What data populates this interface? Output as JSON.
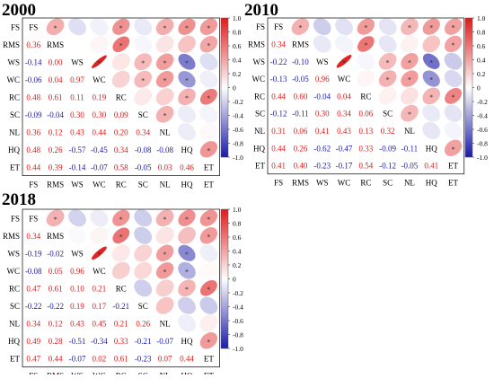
{
  "chart_data": {
    "type": "heatmap",
    "variables": [
      "FS",
      "RMS",
      "WS",
      "WC",
      "RC",
      "SC",
      "NL",
      "HQ",
      "ET"
    ],
    "colorbar": {
      "ticks": [
        "1.0",
        "0.8",
        "0.6",
        "0.4",
        "0.2",
        "0",
        "-0.2",
        "-0.4",
        "-0.6",
        "-0.8",
        "-1.0"
      ],
      "range": [
        -1,
        1
      ],
      "colors": {
        "negative": "#1a1aa8",
        "zero": "#ffffff",
        "positive": "#e01a1a"
      }
    },
    "significance_marker": "*",
    "upper_triangle": "ellipse",
    "lower_triangle": "number",
    "panels": [
      {
        "title": "2000",
        "lower": [
          [
            "0.36"
          ],
          [
            "-0.14",
            "0.00"
          ],
          [
            "-0.06",
            "0.04",
            "0.97"
          ],
          [
            "0.48",
            "0.61",
            "0.11",
            "0.19"
          ],
          [
            "-0.09",
            "-0.04",
            "0.30",
            "0.30",
            "0.09"
          ],
          [
            "0.36",
            "0.12",
            "0.43",
            "0.44",
            "0.20",
            "0.34"
          ],
          [
            "0.48",
            "0.26",
            "-0.57",
            "-0.45",
            "0.34",
            "-0.08",
            "-0.08"
          ],
          [
            "0.44",
            "0.39",
            "-0.14",
            "-0.07",
            "0.58",
            "-0.05",
            "0.03",
            "0.46"
          ]
        ]
      },
      {
        "title": "2010",
        "lower": [
          [
            "0.34"
          ],
          [
            "-0.22",
            "-0.10"
          ],
          [
            "-0.13",
            "-0.05",
            "0.96"
          ],
          [
            "0.44",
            "0.60",
            "-0.04",
            "0.04"
          ],
          [
            "-0.12",
            "-0.11",
            "0.30",
            "0.34",
            "0.06"
          ],
          [
            "0.31",
            "0.06",
            "0.41",
            "0.43",
            "0.13",
            "0.32"
          ],
          [
            "0.44",
            "0.26",
            "-0.62",
            "-0.47",
            "0.33",
            "-0.09",
            "-0.11"
          ],
          [
            "0.41",
            "0.40",
            "-0.23",
            "-0.17",
            "0.54",
            "-0.12",
            "-0.05",
            "0.41"
          ]
        ]
      },
      {
        "title": "2018",
        "lower": [
          [
            "0.34"
          ],
          [
            "-0.19",
            "-0.02"
          ],
          [
            "-0.08",
            "0.05",
            "0.96"
          ],
          [
            "0.47",
            "0.61",
            "0.10",
            "0.21"
          ],
          [
            "-0.22",
            "-0.22",
            "0.19",
            "0.17",
            "-0.21"
          ],
          [
            "0.34",
            "0.12",
            "0.43",
            "0.45",
            "0.21",
            "0.26"
          ],
          [
            "0.49",
            "0.28",
            "-0.51",
            "-0.34",
            "0.33",
            "-0.21",
            "-0.07"
          ],
          [
            "0.47",
            "0.44",
            "-0.07",
            "0.02",
            "0.61",
            "-0.23",
            "0.07",
            "0.44"
          ]
        ]
      }
    ]
  }
}
